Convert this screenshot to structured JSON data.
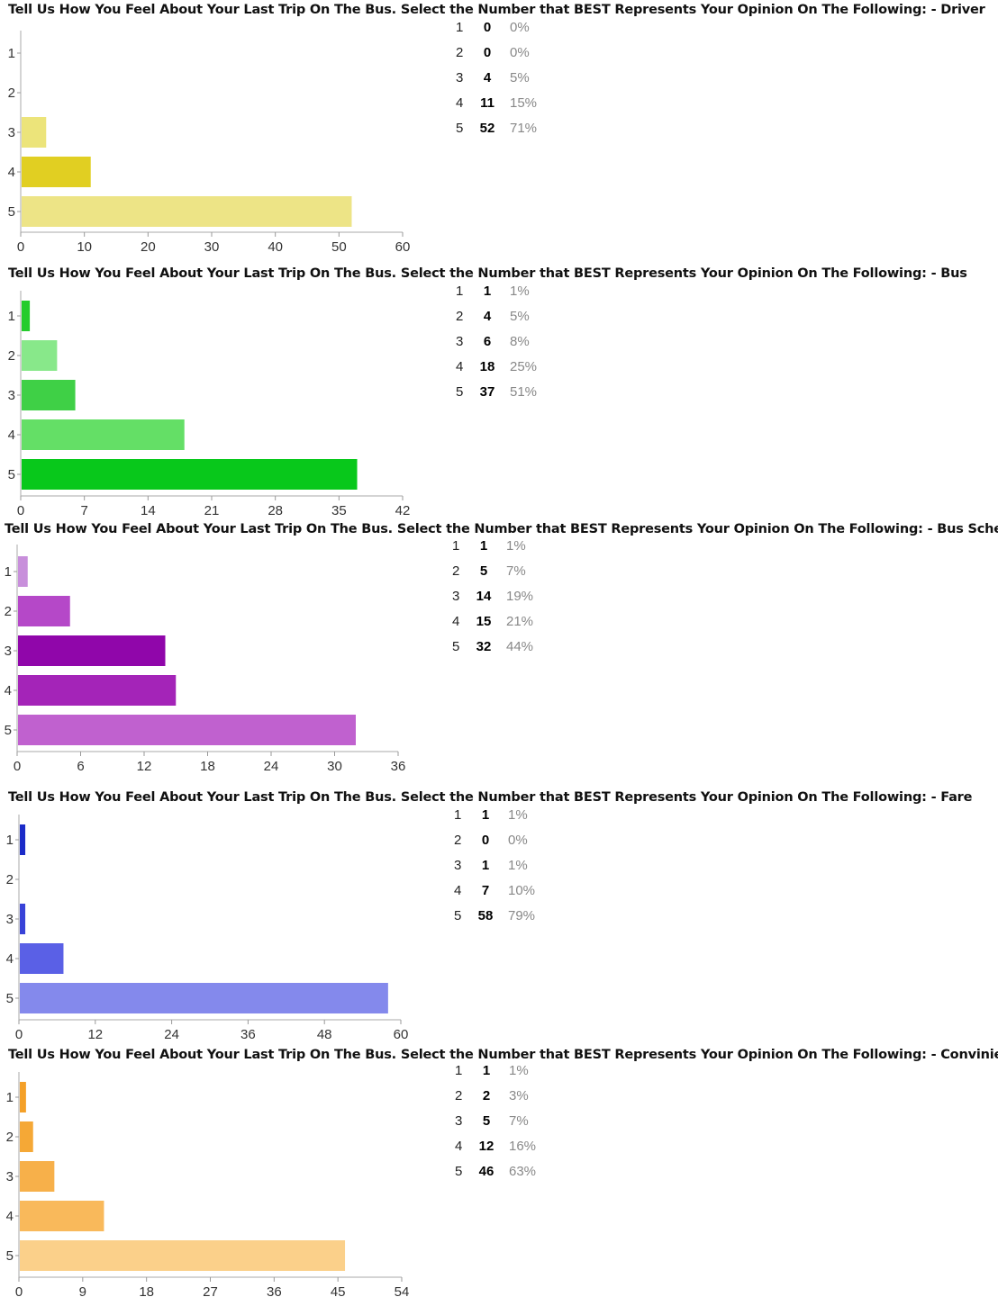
{
  "chart_data": [
    {
      "type": "bar",
      "orientation": "horizontal",
      "title": "Tell Us How You Feel About Your Last Trip On The Bus. Select the Number that BEST Represents Your Opinion On The Following: - Driver",
      "categories": [
        "1",
        "2",
        "3",
        "4",
        "5"
      ],
      "values": [
        0,
        0,
        4,
        11,
        52
      ],
      "percentages": [
        "0%",
        "0%",
        "5%",
        "15%",
        "71%"
      ],
      "colors": [
        "#e5dc6a",
        "#e5dc6a",
        "#ece47a",
        "#e1cf22",
        "#ede486"
      ],
      "xticks": [
        "0",
        "10",
        "20",
        "30",
        "40",
        "50",
        "60"
      ],
      "xlim": [
        0,
        60
      ]
    },
    {
      "type": "bar",
      "orientation": "horizontal",
      "title": "Tell Us How You Feel About Your Last Trip On The Bus. Select the Number that BEST Represents Your Opinion On The Following: - Bus",
      "categories": [
        "1",
        "2",
        "3",
        "4",
        "5"
      ],
      "values": [
        1,
        4,
        6,
        18,
        37
      ],
      "percentages": [
        "1%",
        "5%",
        "8%",
        "25%",
        "51%"
      ],
      "colors": [
        "#24cc2c",
        "#88e88a",
        "#3fd046",
        "#64df66",
        "#08c81b"
      ],
      "xticks": [
        "0",
        "7",
        "14",
        "21",
        "28",
        "35",
        "42"
      ],
      "xlim": [
        0,
        42
      ]
    },
    {
      "type": "bar",
      "orientation": "horizontal",
      "title": "Tell Us How You Feel About Your Last Trip On The Bus. Select the Number that BEST Represents Your Opinion On The Following: - Bus Schedule",
      "categories": [
        "1",
        "2",
        "3",
        "4",
        "5"
      ],
      "values": [
        1,
        5,
        14,
        15,
        32
      ],
      "percentages": [
        "1%",
        "7%",
        "19%",
        "21%",
        "44%"
      ],
      "colors": [
        "#c88fdb",
        "#b548c8",
        "#9006aa",
        "#a424b8",
        "#c061cf"
      ],
      "xticks": [
        "0",
        "6",
        "12",
        "18",
        "24",
        "30",
        "36"
      ],
      "xlim": [
        0,
        36
      ]
    },
    {
      "type": "bar",
      "orientation": "horizontal",
      "title": "Tell Us How You Feel About Your Last Trip On The Bus. Select the Number that BEST Represents Your Opinion On The Following: - Fare",
      "categories": [
        "1",
        "2",
        "3",
        "4",
        "5"
      ],
      "values": [
        1,
        0,
        1,
        7,
        58
      ],
      "percentages": [
        "1%",
        "0%",
        "1%",
        "10%",
        "79%"
      ],
      "colors": [
        "#1b2bc8",
        "#5b63e2",
        "#3842d8",
        "#5a60e6",
        "#8489ec"
      ],
      "xticks": [
        "0",
        "12",
        "24",
        "36",
        "48",
        "60"
      ],
      "xlim": [
        0,
        60
      ]
    },
    {
      "type": "bar",
      "orientation": "horizontal",
      "title": "Tell Us How You Feel About Your Last Trip On The Bus. Select the Number that BEST Represents Your Opinion On The Following: - Convinience",
      "categories": [
        "1",
        "2",
        "3",
        "4",
        "5"
      ],
      "values": [
        1,
        2,
        5,
        12,
        46
      ],
      "percentages": [
        "1%",
        "3%",
        "7%",
        "16%",
        "63%"
      ],
      "colors": [
        "#f4a028",
        "#f5a836",
        "#f7b04a",
        "#f9b95b",
        "#fbd08a"
      ],
      "xticks": [
        "0",
        "9",
        "18",
        "27",
        "36",
        "45",
        "54"
      ],
      "xlim": [
        0,
        54
      ]
    }
  ]
}
